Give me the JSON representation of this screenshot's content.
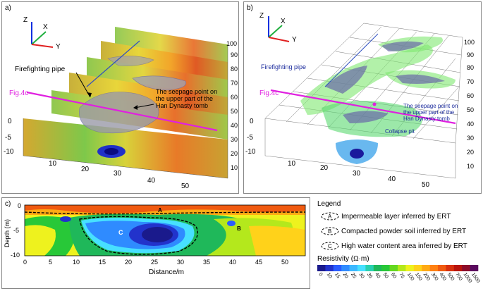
{
  "panel_a": {
    "label": "a)",
    "axis": {
      "z": "Z",
      "x": "X",
      "y": "Y"
    },
    "fig_ref": "Fig.4c",
    "firefighting_label": "Firefighting pipe",
    "seepage_label_1": "The seepage point on",
    "seepage_label_2": "the upper part of the",
    "seepage_label_3": "Han Dynasty tomb",
    "depth_ticks": [
      "0",
      "-5",
      "-10"
    ],
    "x_ticks": [
      "10",
      "20",
      "30",
      "40",
      "50"
    ],
    "y_ticks": [
      "10",
      "20",
      "30",
      "40",
      "50",
      "60",
      "70",
      "80",
      "90",
      "100"
    ]
  },
  "panel_b": {
    "label": "b)",
    "axis": {
      "z": "Z",
      "x": "X",
      "y": "Y"
    },
    "fig_ref": "Fig.4c",
    "firefighting_label": "Firefighting pipe",
    "seepage_label_1": "The seepage point on",
    "seepage_label_2": "the upper part of the",
    "seepage_label_3": "Han Dynasty tomb",
    "collapse_label": "Collapse pit",
    "depth_ticks": [
      "0",
      "-5",
      "-10"
    ],
    "x_ticks": [
      "10",
      "20",
      "30",
      "40",
      "50"
    ],
    "y_ticks": [
      "10",
      "20",
      "30",
      "40",
      "50",
      "60",
      "70",
      "80",
      "90",
      "100"
    ]
  },
  "panel_c": {
    "label": "c)",
    "ylabel": "Depth (m)",
    "xlabel": "Distance/m",
    "y_ticks": [
      "0",
      "-5",
      "-10"
    ],
    "x_ticks": [
      "0",
      "5",
      "10",
      "15",
      "20",
      "25",
      "30",
      "35",
      "40",
      "45",
      "50"
    ],
    "region_labels": {
      "a": "A",
      "b": "B",
      "c": "C"
    }
  },
  "legend": {
    "title": "Legend",
    "items": [
      {
        "key": "A",
        "text": "Impermeable layer inferred by ERT"
      },
      {
        "key": "B",
        "text": "Compacted powder soil inferred by ERT"
      },
      {
        "key": "C",
        "text": "High water content area inferred by ERT"
      }
    ],
    "resistivity_title": "Resistivity (Ω·m)",
    "scale_values": [
      "0",
      "10",
      "15",
      "20",
      "25",
      "30",
      "35",
      "40",
      "50",
      "60",
      "75",
      "100",
      "150",
      "200",
      "300",
      "400",
      "500",
      "700",
      "1000",
      "1500"
    ],
    "scale_colors": [
      "#1a1a8c",
      "#2233cc",
      "#2a5cff",
      "#2f8bff",
      "#3bb8ff",
      "#47e0ff",
      "#29d0b0",
      "#1fb85a",
      "#28c838",
      "#64d820",
      "#b4e81c",
      "#eef21e",
      "#ffd21a",
      "#ffaa14",
      "#ff8012",
      "#f05a10",
      "#d8300e",
      "#b8140c",
      "#8c0c2a",
      "#5a0a5e"
    ]
  }
}
